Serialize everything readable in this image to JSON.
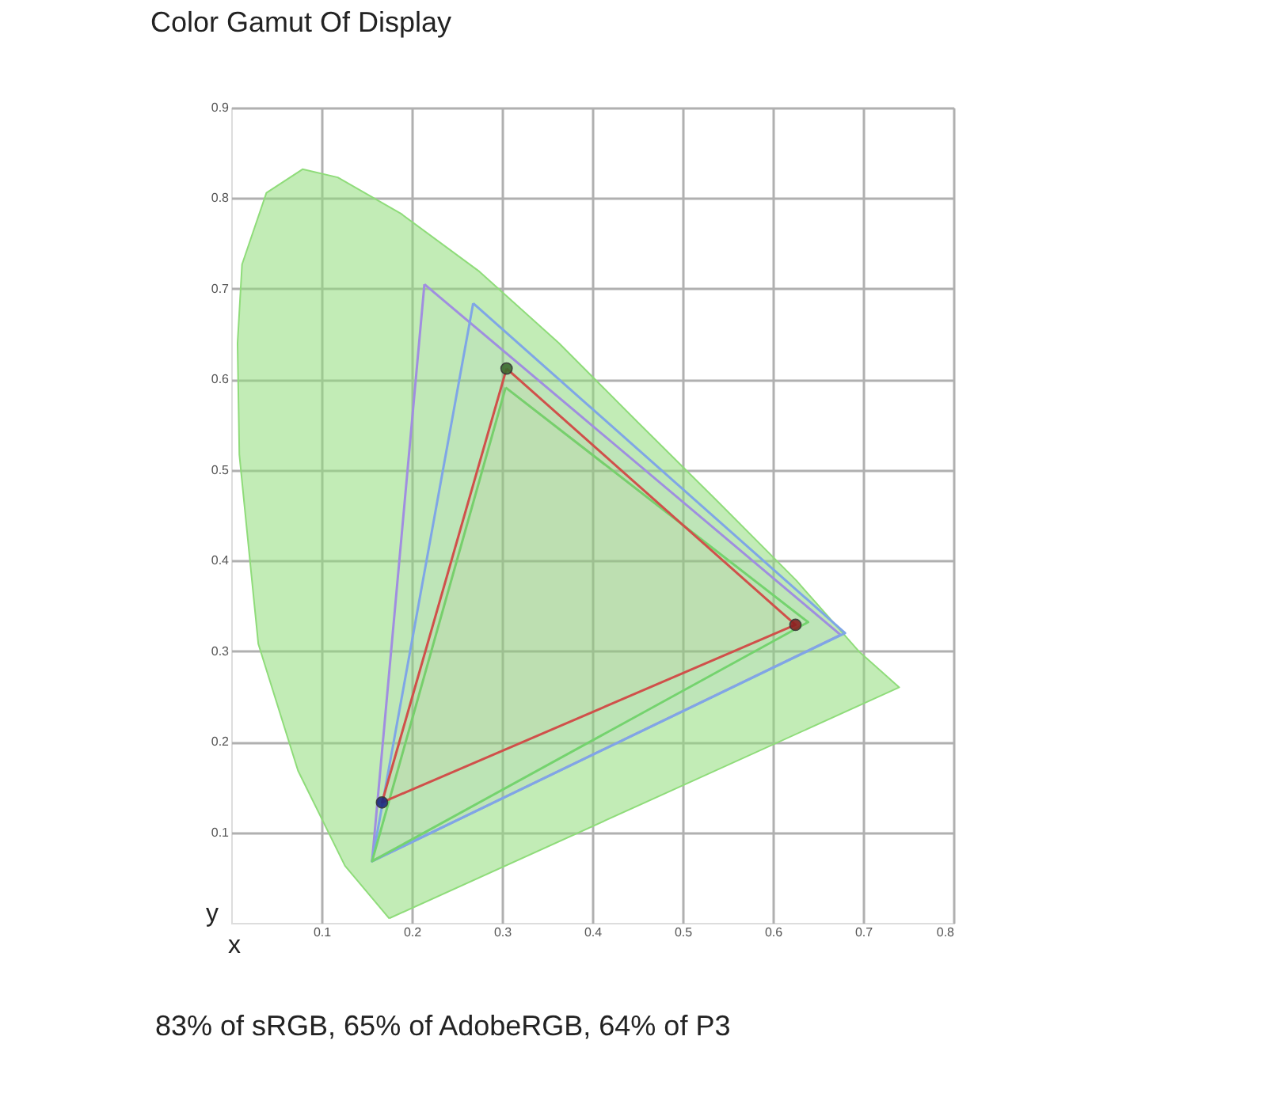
{
  "chart_data": {
    "type": "area",
    "title": "Color Gamut Of Display",
    "xlabel": "x",
    "ylabel": "y",
    "xlim": [
      0,
      0.8
    ],
    "ylim": [
      0,
      0.9
    ],
    "xticks": [
      0.1,
      0.2,
      0.3,
      0.4,
      0.5,
      0.6,
      0.7,
      0.8
    ],
    "yticks": [
      0.1,
      0.2,
      0.3,
      0.4,
      0.5,
      0.6,
      0.7,
      0.8,
      0.9
    ],
    "grid": true,
    "line_style": "solid",
    "annotations": [
      "83% of sRGB, 65% of AdobeRGB, 64% of P3"
    ],
    "series": [
      {
        "color": "#8fdc7a",
        "x": [
          0.175,
          0.126,
          0.074,
          0.03,
          0.009,
          0.007,
          0.012,
          0.039,
          0.079,
          0.118,
          0.188,
          0.275,
          0.363,
          0.451,
          0.539,
          0.626,
          0.696,
          0.74,
          0.175
        ],
        "values": [
          0.005,
          0.063,
          0.168,
          0.308,
          0.517,
          0.64,
          0.727,
          0.806,
          0.832,
          0.823,
          0.783,
          0.719,
          0.64,
          0.552,
          0.465,
          0.378,
          0.299,
          0.26,
          0.005
        ]
      },
      {
        "color": "#a08ee0",
        "x": [
          0.214,
          0.156,
          0.675,
          0.214
        ],
        "values": [
          0.705,
          0.068,
          0.318,
          0.705
        ]
      },
      {
        "color": "#7fa6e6",
        "x": [
          0.268,
          0.156,
          0.68,
          0.268
        ],
        "values": [
          0.684,
          0.068,
          0.32,
          0.684
        ]
      },
      {
        "color": "#74d36e",
        "x": [
          0.304,
          0.156,
          0.639,
          0.304
        ],
        "values": [
          0.591,
          0.068,
          0.332,
          0.591
        ]
      },
      {
        "color": "#d0504a",
        "x": [
          0.305,
          0.167,
          0.625,
          0.305
        ],
        "values": [
          0.612,
          0.133,
          0.329,
          0.612
        ]
      },
      {
        "type": "scatter",
        "marker": "circle",
        "colors": [
          "#3d6b2f",
          "#1d2a80",
          "#8a2020"
        ],
        "x": [
          0.305,
          0.167,
          0.625
        ],
        "values": [
          0.612,
          0.133,
          0.329
        ]
      }
    ]
  }
}
